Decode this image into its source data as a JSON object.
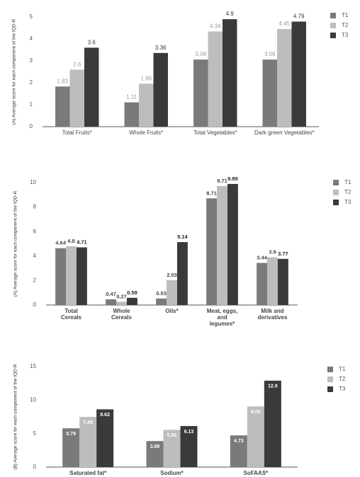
{
  "chart_data": [
    {
      "type": "bar",
      "y_label": "(A) Average score for each component of the IQD-R",
      "categories": [
        "Total Fruits*",
        "Whole Fruits*",
        "Total Vegetables*",
        "Dark green Vegetables*"
      ],
      "series": [
        {
          "name": "T1",
          "color": "#7a7a7a",
          "values": [
            1.83,
            1.11,
            3.06,
            3.06
          ]
        },
        {
          "name": "T2",
          "color": "#bdbdbd",
          "values": [
            2.6,
            1.96,
            4.34,
            4.45
          ]
        },
        {
          "name": "T3",
          "color": "#3a3a3a",
          "values": [
            3.6,
            3.36,
            4.9,
            4.79
          ]
        }
      ],
      "ylim": [
        0,
        5
      ],
      "yticks": [
        0,
        1,
        2,
        3,
        4,
        5
      ],
      "legend": "right"
    },
    {
      "type": "bar",
      "y_label": "(A) Average score for each component of the IQD-R",
      "categories": [
        "Total Cereals",
        "Whole Cereals",
        "Oils*",
        "Meat, eggs, and legumes*",
        "Milk and derivatives"
      ],
      "series": [
        {
          "name": "T1",
          "color": "#7a7a7a",
          "values": [
            4.64,
            0.47,
            0.53,
            8.71,
            3.44
          ]
        },
        {
          "name": "T2",
          "color": "#bdbdbd",
          "values": [
            4.8,
            0.27,
            2.03,
            9.71,
            3.9
          ]
        },
        {
          "name": "T3",
          "color": "#3a3a3a",
          "values": [
            4.71,
            0.59,
            5.14,
            9.89,
            3.77
          ]
        }
      ],
      "ylim": [
        0,
        10
      ],
      "yticks": [
        0,
        2,
        4,
        6,
        8,
        10
      ],
      "legend": "right"
    },
    {
      "type": "bar",
      "y_label": "(B) Average score for each component of the IQD-R",
      "categories": [
        "Saturated fat*",
        "Sodium*",
        "SoFAAS*"
      ],
      "series": [
        {
          "name": "T1",
          "color": "#7a7a7a",
          "values": [
            5.79,
            3.89,
            4.73
          ]
        },
        {
          "name": "T2",
          "color": "#bdbdbd",
          "values": [
            7.49,
            5.56,
            9.05
          ]
        },
        {
          "name": "T3",
          "color": "#3a3a3a",
          "values": [
            8.62,
            6.13,
            12.9
          ]
        }
      ],
      "ylim": [
        0,
        15
      ],
      "yticks": [
        0,
        5,
        10,
        15
      ],
      "legend": "right"
    }
  ]
}
